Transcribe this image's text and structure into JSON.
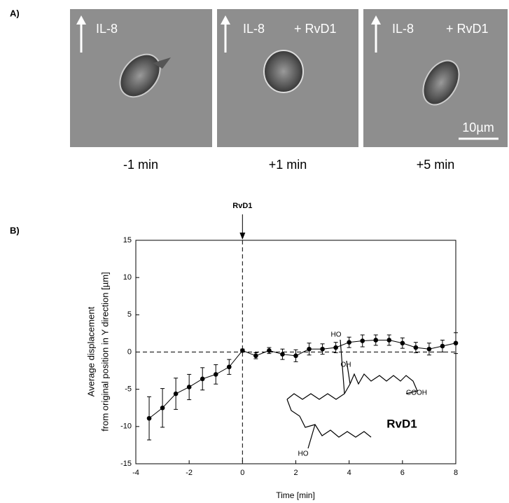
{
  "panel_a": {
    "label": "A)",
    "images": [
      {
        "stimulus": "IL-8",
        "caption": "-1 min"
      },
      {
        "stimulus": "IL-8",
        "treatment": "+ RvD1",
        "caption": "+1 min"
      },
      {
        "stimulus": "IL-8",
        "treatment": "+ RvD1",
        "caption": "+5 min",
        "scale_bar": "10µm"
      }
    ]
  },
  "structure": {
    "labels": [
      "HO",
      "OH",
      "COOH",
      "HO"
    ],
    "name": "RvD1"
  },
  "chart_data": {
    "type": "line",
    "panel_label": "B)",
    "annotation": {
      "text": "RvD1",
      "x": 0
    },
    "xlabel": "Time [min]",
    "ylabel": [
      "Average displacement",
      "from original position in Y direction [µm]"
    ],
    "x": [
      -3.5,
      -3,
      -2.5,
      -2,
      -1.5,
      -1,
      -0.5,
      0,
      0.5,
      1,
      1.5,
      2,
      2.5,
      3,
      3.5,
      4,
      4.5,
      5,
      5.5,
      6,
      6.5,
      7,
      7.5,
      8
    ],
    "values": [
      -8.9,
      -7.5,
      -5.6,
      -4.7,
      -3.6,
      -3.0,
      -2.0,
      0.2,
      -0.5,
      0.2,
      -0.3,
      -0.5,
      0.4,
      0.4,
      0.6,
      1.3,
      1.5,
      1.6,
      1.6,
      1.2,
      0.6,
      0.4,
      0.8,
      1.2
    ],
    "errors": [
      2.9,
      2.6,
      2.1,
      1.7,
      1.5,
      1.3,
      1.0,
      0.2,
      0.4,
      0.4,
      0.7,
      0.8,
      0.8,
      0.7,
      0.7,
      0.7,
      0.8,
      0.7,
      0.7,
      0.7,
      0.7,
      0.8,
      0.8,
      1.4
    ],
    "color": "#000000",
    "xlim": [
      -4,
      8
    ],
    "xticks": [
      -4,
      -2,
      0,
      2,
      4,
      6,
      8
    ],
    "ylim": [
      -15,
      15
    ],
    "yticks": [
      -15,
      -10,
      -5,
      0,
      5,
      10,
      15
    ]
  }
}
